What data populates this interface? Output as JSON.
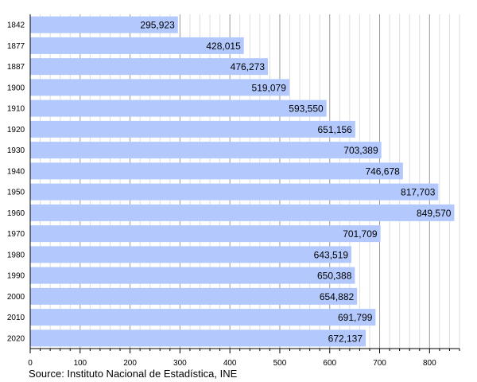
{
  "chart_data": {
    "type": "bar",
    "orientation": "horizontal",
    "categories": [
      "1842",
      "1877",
      "1887",
      "1900",
      "1910",
      "1920",
      "1930",
      "1940",
      "1950",
      "1960",
      "1970",
      "1980",
      "1990",
      "2000",
      "2010",
      "2020"
    ],
    "values": [
      295923,
      428015,
      476273,
      519079,
      593550,
      651156,
      703389,
      746678,
      817703,
      849570,
      701709,
      643519,
      650388,
      654882,
      691799,
      672137
    ],
    "value_labels": [
      "295,923",
      "428,015",
      "476,273",
      "519,079",
      "593,550",
      "651,156",
      "703,389",
      "746,678",
      "817,703",
      "849,570",
      "701,709",
      "643,519",
      "650,388",
      "654,882",
      "691,799",
      "672,137"
    ],
    "x_ticks": [
      "0",
      "100",
      "200",
      "300",
      "400",
      "500",
      "600",
      "700",
      "800"
    ],
    "x_tick_scale": 1000,
    "xlim": [
      0,
      860
    ],
    "grid": true,
    "bar_color": "#b3c9fd",
    "source": "Source: Instituto Nacional de Estadística, INE"
  }
}
